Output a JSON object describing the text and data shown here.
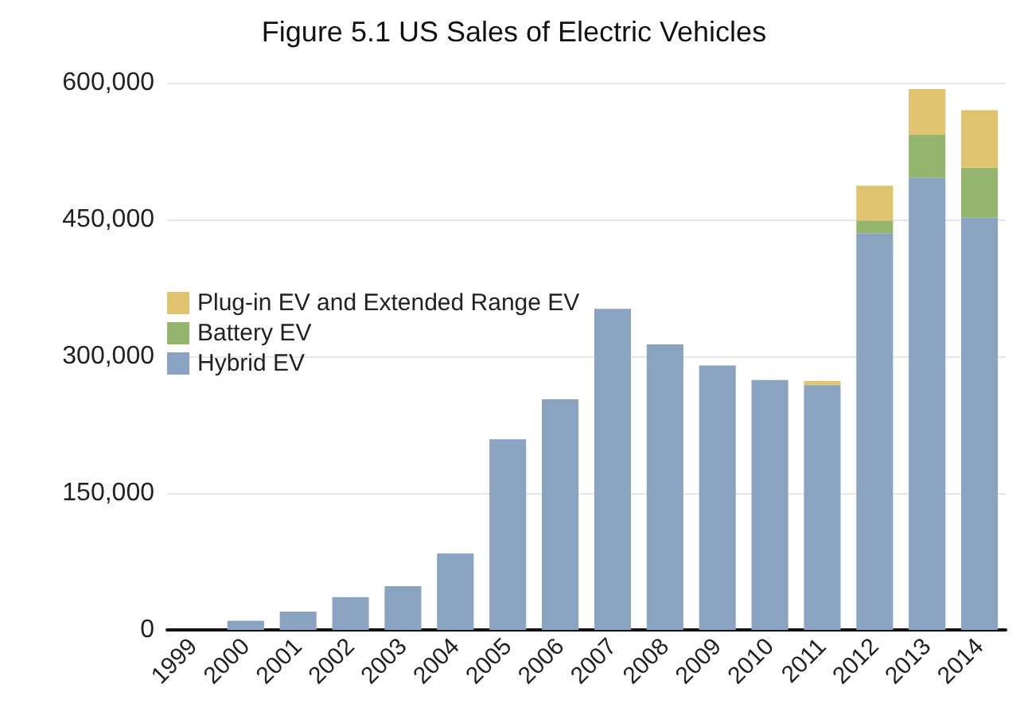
{
  "chart_data": {
    "type": "bar",
    "title": "Figure 5.1 US Sales of Electric Vehicles",
    "stacked": true,
    "categories": [
      "1999",
      "2000",
      "2001",
      "2002",
      "2003",
      "2004",
      "2005",
      "2006",
      "2007",
      "2008",
      "2009",
      "2010",
      "2011",
      "2012",
      "2013",
      "2014"
    ],
    "series": [
      {
        "name": "Hybrid EV",
        "color": "#8aa3c0",
        "values": [
          0,
          10000,
          20000,
          36000,
          48000,
          84000,
          209000,
          253000,
          352000,
          313000,
          290000,
          274000,
          268000,
          435000,
          496000,
          452000
        ]
      },
      {
        "name": "Battery EV",
        "color": "#93b56e",
        "values": [
          0,
          0,
          0,
          0,
          0,
          0,
          0,
          0,
          0,
          0,
          0,
          0,
          1000,
          14000,
          47000,
          55000
        ]
      },
      {
        "name": "Plug-in EV and Extended Range EV",
        "color": "#dfc36e",
        "values": [
          0,
          0,
          0,
          0,
          0,
          0,
          0,
          0,
          0,
          0,
          0,
          0,
          4000,
          38000,
          50000,
          63000
        ]
      }
    ],
    "ylim": [
      0,
      600000
    ],
    "yticks": [
      0,
      {
        "value": 150000,
        "label": "150,000"
      },
      {
        "value": 300000,
        "label": "300,000"
      },
      {
        "value": 450000,
        "label": "450,000"
      },
      {
        "value": 600000,
        "label": "600,000"
      }
    ],
    "grid": "y",
    "legend": "left"
  }
}
